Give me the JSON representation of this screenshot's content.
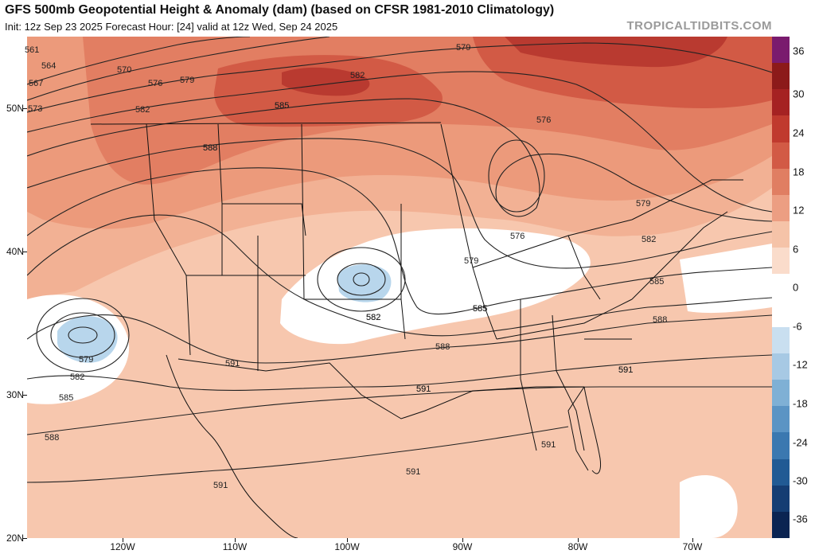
{
  "header": {
    "title": "GFS 500mb Geopotential Height & Anomaly (dam) (based on CFSR 1981-2010 Climatology)",
    "subtitle": "Init: 12z Sep 23 2025   Forecast Hour: [24]   valid at 12z Wed, Sep 24 2025",
    "credit": "TROPICALTIDBITS.COM"
  },
  "axes": {
    "lat_labels": [
      "50N",
      "40N",
      "30N",
      "20N"
    ],
    "lon_labels": [
      "120W",
      "110W",
      "100W",
      "90W",
      "80W",
      "70W"
    ]
  },
  "colorbar": {
    "labels": [
      "36",
      "30",
      "24",
      "18",
      "12",
      "6",
      "0",
      "-6",
      "-12",
      "-18",
      "-24",
      "-30",
      "-36"
    ],
    "colors": [
      "#7a1b6e",
      "#8c1a1a",
      "#a52222",
      "#c03a2e",
      "#d25a45",
      "#e07e62",
      "#ec9e82",
      "#f5c3a8",
      "#fadccb",
      "#ffffff",
      "#ffffff",
      "#c9dff0",
      "#a7c9e4",
      "#7fb0d5",
      "#5b94c4",
      "#3b78b0",
      "#215a94",
      "#153d73",
      "#0b2452"
    ]
  },
  "contours": {
    "labels": [
      "561",
      "564",
      "567",
      "570",
      "573",
      "576",
      "579",
      "582",
      "585",
      "588",
      "591"
    ],
    "placed": [
      {
        "text": "561"
      },
      {
        "text": "564"
      },
      {
        "text": "567"
      },
      {
        "text": "570"
      },
      {
        "text": "573"
      },
      {
        "text": "576"
      },
      {
        "text": "579"
      },
      {
        "text": "582"
      },
      {
        "text": "585"
      },
      {
        "text": "588"
      },
      {
        "text": "579"
      },
      {
        "text": "582"
      },
      {
        "text": "585"
      },
      {
        "text": "588"
      },
      {
        "text": "576"
      },
      {
        "text": "579"
      },
      {
        "text": "576"
      },
      {
        "text": "579"
      },
      {
        "text": "582"
      },
      {
        "text": "585"
      },
      {
        "text": "588"
      },
      {
        "text": "591"
      },
      {
        "text": "582"
      },
      {
        "text": "585"
      },
      {
        "text": "588"
      },
      {
        "text": "591"
      },
      {
        "text": "579"
      },
      {
        "text": "582"
      },
      {
        "text": "585"
      },
      {
        "text": "588"
      },
      {
        "text": "591"
      },
      {
        "text": "591"
      },
      {
        "text": "591"
      },
      {
        "text": "591"
      },
      {
        "text": "591"
      },
      {
        "text": "585"
      },
      {
        "text": "582"
      },
      {
        "text": "591"
      }
    ]
  }
}
